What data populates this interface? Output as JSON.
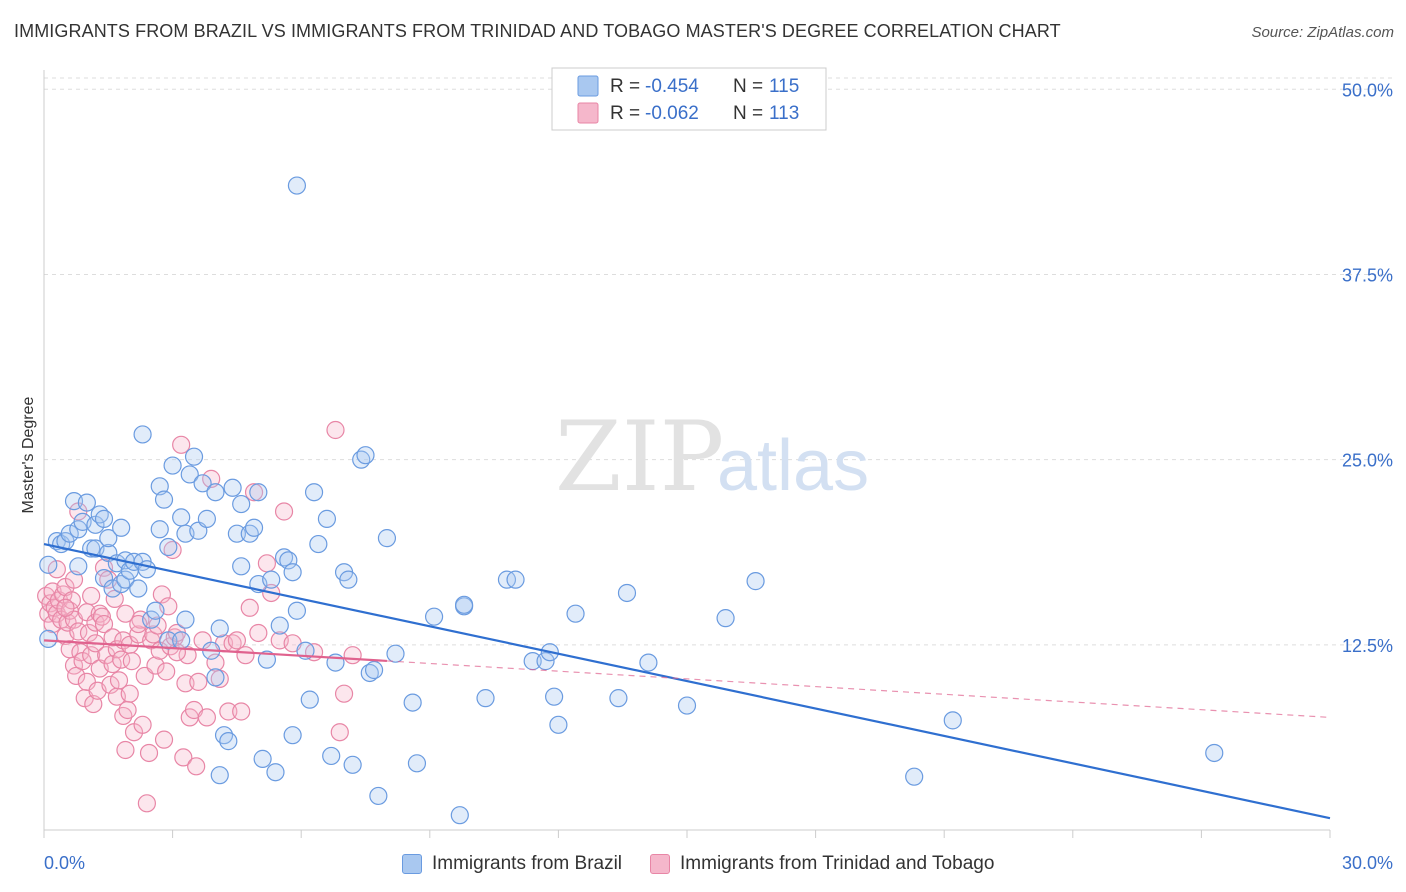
{
  "header": {
    "title": "IMMIGRANTS FROM BRAZIL VS IMMIGRANTS FROM TRINIDAD AND TOBAGO MASTER'S DEGREE CORRELATION CHART",
    "source": "Source: ZipAtlas.com"
  },
  "watermark": {
    "zip": "ZIP",
    "atlas": "atlas"
  },
  "legend_top": {
    "rows": [
      {
        "r_label": "R = ",
        "r_value": "-0.454",
        "n_label": "N = ",
        "n_value": "115"
      },
      {
        "r_label": "R = ",
        "r_value": "-0.062",
        "n_label": "N = ",
        "n_value": "113"
      }
    ]
  },
  "colors": {
    "brazil_fill": "#a9c8f0",
    "brazil_stroke": "#6a9be0",
    "brazil_line": "#2f6fd0",
    "tt_fill": "#f5b7cb",
    "tt_stroke": "#e886a6",
    "tt_line": "#e0628e",
    "value_text": "#3a6fc9",
    "grid": "#dddddd"
  },
  "chart_data": {
    "type": "scatter",
    "title": "IMMIGRANTS FROM BRAZIL VS IMMIGRANTS FROM TRINIDAD AND TOBAGO MASTER'S DEGREE CORRELATION CHART",
    "xlabel": "",
    "ylabel": "Master's Degree",
    "xlim": [
      0,
      30
    ],
    "ylim": [
      0,
      51.3
    ],
    "x_tick_labels": [
      "0.0%",
      "30.0%"
    ],
    "y_ticks": [
      12.5,
      25.0,
      37.5,
      50.0
    ],
    "y_tick_labels": [
      "12.5%",
      "25.0%",
      "37.5%",
      "50.0%"
    ],
    "grid": true,
    "legend_position": "top-center",
    "series": [
      {
        "name": "Immigrants from Brazil",
        "R": -0.454,
        "N": 115,
        "trend": {
          "x": [
            0,
            30
          ],
          "y": [
            19.3,
            0.8
          ],
          "style": "solid"
        },
        "points": [
          [
            0.1,
            17.9
          ],
          [
            0.3,
            19.5
          ],
          [
            0.4,
            19.3
          ],
          [
            0.5,
            19.5
          ],
          [
            0.6,
            20.0
          ],
          [
            0.7,
            22.2
          ],
          [
            0.8,
            17.8
          ],
          [
            0.8,
            20.3
          ],
          [
            0.9,
            20.8
          ],
          [
            1.0,
            22.1
          ],
          [
            1.1,
            19.0
          ],
          [
            1.2,
            19.0
          ],
          [
            1.2,
            20.6
          ],
          [
            1.3,
            21.3
          ],
          [
            1.4,
            21.0
          ],
          [
            1.4,
            17.0
          ],
          [
            1.5,
            18.7
          ],
          [
            1.5,
            19.7
          ],
          [
            1.6,
            16.3
          ],
          [
            1.7,
            18.0
          ],
          [
            1.8,
            16.6
          ],
          [
            1.8,
            20.4
          ],
          [
            1.9,
            16.9
          ],
          [
            1.9,
            18.2
          ],
          [
            2.0,
            17.5
          ],
          [
            2.1,
            18.1
          ],
          [
            2.2,
            16.3
          ],
          [
            2.3,
            26.7
          ],
          [
            2.3,
            18.1
          ],
          [
            2.4,
            17.6
          ],
          [
            2.5,
            14.2
          ],
          [
            2.6,
            14.8
          ],
          [
            2.7,
            23.2
          ],
          [
            2.7,
            20.3
          ],
          [
            2.8,
            22.3
          ],
          [
            2.9,
            19.1
          ],
          [
            2.9,
            12.8
          ],
          [
            3.0,
            24.6
          ],
          [
            3.2,
            21.1
          ],
          [
            3.2,
            12.8
          ],
          [
            3.3,
            20.0
          ],
          [
            3.3,
            14.2
          ],
          [
            3.4,
            24.0
          ],
          [
            3.5,
            25.2
          ],
          [
            3.6,
            20.2
          ],
          [
            3.7,
            23.4
          ],
          [
            3.8,
            21.0
          ],
          [
            3.9,
            12.1
          ],
          [
            4.0,
            22.8
          ],
          [
            4.0,
            10.3
          ],
          [
            4.1,
            13.6
          ],
          [
            4.1,
            3.7
          ],
          [
            4.2,
            6.4
          ],
          [
            4.3,
            6.0
          ],
          [
            4.4,
            23.1
          ],
          [
            4.5,
            20.0
          ],
          [
            4.6,
            22.0
          ],
          [
            4.6,
            17.8
          ],
          [
            4.8,
            20.0
          ],
          [
            4.9,
            20.4
          ],
          [
            5.0,
            22.8
          ],
          [
            5.0,
            16.6
          ],
          [
            5.1,
            4.8
          ],
          [
            5.2,
            11.5
          ],
          [
            5.3,
            16.9
          ],
          [
            5.4,
            3.9
          ],
          [
            5.5,
            13.8
          ],
          [
            5.6,
            18.4
          ],
          [
            5.7,
            18.2
          ],
          [
            5.8,
            6.4
          ],
          [
            5.8,
            17.4
          ],
          [
            5.9,
            43.5
          ],
          [
            5.9,
            14.8
          ],
          [
            6.1,
            12.1
          ],
          [
            6.2,
            8.8
          ],
          [
            6.3,
            22.8
          ],
          [
            6.4,
            19.3
          ],
          [
            6.6,
            21.0
          ],
          [
            6.7,
            5.0
          ],
          [
            6.8,
            11.3
          ],
          [
            7.0,
            17.4
          ],
          [
            7.1,
            16.9
          ],
          [
            7.2,
            4.4
          ],
          [
            7.4,
            25.0
          ],
          [
            7.5,
            25.3
          ],
          [
            7.6,
            10.6
          ],
          [
            7.7,
            10.8
          ],
          [
            7.8,
            2.3
          ],
          [
            8.0,
            19.7
          ],
          [
            8.2,
            11.9
          ],
          [
            8.6,
            8.6
          ],
          [
            8.7,
            4.5
          ],
          [
            9.1,
            14.4
          ],
          [
            9.7,
            1.0
          ],
          [
            9.8,
            15.1
          ],
          [
            9.8,
            15.2
          ],
          [
            10.3,
            8.9
          ],
          [
            10.8,
            16.9
          ],
          [
            11.0,
            16.9
          ],
          [
            11.4,
            11.4
          ],
          [
            11.7,
            11.4
          ],
          [
            11.8,
            12.0
          ],
          [
            11.9,
            9.0
          ],
          [
            12.0,
            7.1
          ],
          [
            12.4,
            14.6
          ],
          [
            13.4,
            8.9
          ],
          [
            13.6,
            16.0
          ],
          [
            14.1,
            11.3
          ],
          [
            15.0,
            8.4
          ],
          [
            15.9,
            14.3
          ],
          [
            16.6,
            16.8
          ],
          [
            20.3,
            3.6
          ],
          [
            21.2,
            7.4
          ],
          [
            27.3,
            5.2
          ],
          [
            0.1,
            12.9
          ]
        ]
      },
      {
        "name": "Immigrants from Trinidad and Tobago",
        "R": -0.062,
        "N": 113,
        "trend": {
          "x": [
            0,
            30
          ],
          "y": [
            12.8,
            7.6
          ],
          "solid_until": 8.0,
          "style": "solid-then-dashed"
        },
        "points": [
          [
            0.05,
            15.8
          ],
          [
            0.1,
            14.6
          ],
          [
            0.15,
            15.3
          ],
          [
            0.2,
            16.1
          ],
          [
            0.2,
            13.9
          ],
          [
            0.25,
            15.0
          ],
          [
            0.3,
            14.6
          ],
          [
            0.35,
            15.5
          ],
          [
            0.4,
            14.2
          ],
          [
            0.45,
            15.9
          ],
          [
            0.5,
            13.1
          ],
          [
            0.5,
            16.4
          ],
          [
            0.55,
            14.0
          ],
          [
            0.6,
            12.2
          ],
          [
            0.6,
            14.8
          ],
          [
            0.65,
            15.5
          ],
          [
            0.7,
            14.2
          ],
          [
            0.7,
            11.1
          ],
          [
            0.75,
            10.4
          ],
          [
            0.8,
            13.4
          ],
          [
            0.8,
            21.5
          ],
          [
            0.85,
            12.0
          ],
          [
            0.9,
            11.4
          ],
          [
            0.95,
            8.9
          ],
          [
            1.0,
            10.0
          ],
          [
            1.0,
            14.7
          ],
          [
            1.05,
            13.3
          ],
          [
            1.1,
            15.8
          ],
          [
            1.1,
            11.8
          ],
          [
            1.15,
            8.5
          ],
          [
            1.2,
            14.0
          ],
          [
            1.2,
            12.6
          ],
          [
            1.25,
            9.4
          ],
          [
            1.3,
            10.9
          ],
          [
            1.3,
            14.6
          ],
          [
            1.35,
            14.4
          ],
          [
            1.4,
            13.9
          ],
          [
            1.4,
            17.7
          ],
          [
            1.45,
            11.8
          ],
          [
            1.5,
            16.9
          ],
          [
            1.55,
            9.8
          ],
          [
            1.6,
            13.0
          ],
          [
            1.6,
            11.2
          ],
          [
            1.65,
            15.6
          ],
          [
            1.7,
            9.0
          ],
          [
            1.7,
            12.2
          ],
          [
            1.75,
            10.1
          ],
          [
            1.8,
            11.5
          ],
          [
            1.85,
            12.8
          ],
          [
            1.85,
            7.7
          ],
          [
            1.9,
            5.4
          ],
          [
            1.95,
            8.1
          ],
          [
            2.0,
            9.2
          ],
          [
            2.0,
            12.5
          ],
          [
            2.05,
            11.4
          ],
          [
            2.1,
            6.6
          ],
          [
            2.2,
            13.2
          ],
          [
            2.25,
            14.2
          ],
          [
            2.3,
            7.1
          ],
          [
            2.35,
            10.4
          ],
          [
            2.4,
            1.8
          ],
          [
            2.45,
            5.2
          ],
          [
            2.5,
            12.8
          ],
          [
            2.55,
            13.2
          ],
          [
            2.6,
            11.1
          ],
          [
            2.65,
            13.8
          ],
          [
            2.7,
            12.1
          ],
          [
            2.75,
            15.9
          ],
          [
            2.8,
            6.1
          ],
          [
            2.85,
            10.7
          ],
          [
            2.9,
            15.1
          ],
          [
            2.95,
            12.4
          ],
          [
            3.0,
            18.9
          ],
          [
            3.05,
            13.0
          ],
          [
            3.1,
            13.3
          ],
          [
            3.2,
            26.0
          ],
          [
            3.25,
            4.9
          ],
          [
            3.3,
            9.9
          ],
          [
            3.35,
            11.8
          ],
          [
            3.4,
            7.6
          ],
          [
            3.5,
            8.1
          ],
          [
            3.55,
            4.3
          ],
          [
            3.6,
            10.0
          ],
          [
            3.7,
            12.8
          ],
          [
            3.8,
            7.6
          ],
          [
            3.9,
            23.7
          ],
          [
            4.0,
            11.3
          ],
          [
            4.1,
            10.2
          ],
          [
            4.2,
            12.6
          ],
          [
            4.3,
            8.0
          ],
          [
            4.4,
            12.6
          ],
          [
            4.5,
            12.8
          ],
          [
            4.6,
            8.0
          ],
          [
            4.8,
            15.0
          ],
          [
            4.9,
            22.8
          ],
          [
            5.0,
            13.3
          ],
          [
            5.2,
            18.0
          ],
          [
            5.3,
            16.0
          ],
          [
            5.5,
            12.8
          ],
          [
            5.6,
            21.5
          ],
          [
            6.3,
            12.0
          ],
          [
            6.8,
            27.0
          ],
          [
            7.0,
            9.2
          ],
          [
            6.9,
            6.6
          ],
          [
            7.2,
            11.8
          ],
          [
            0.3,
            17.6
          ],
          [
            0.5,
            15.0
          ],
          [
            0.7,
            16.9
          ],
          [
            1.9,
            14.6
          ],
          [
            2.2,
            13.9
          ],
          [
            3.1,
            12.0
          ],
          [
            4.7,
            11.8
          ],
          [
            5.8,
            12.6
          ]
        ]
      }
    ]
  },
  "legend_bottom": {
    "items": [
      {
        "label": "Immigrants from Brazil"
      },
      {
        "label": "Immigrants from Trinidad and Tobago"
      }
    ]
  }
}
